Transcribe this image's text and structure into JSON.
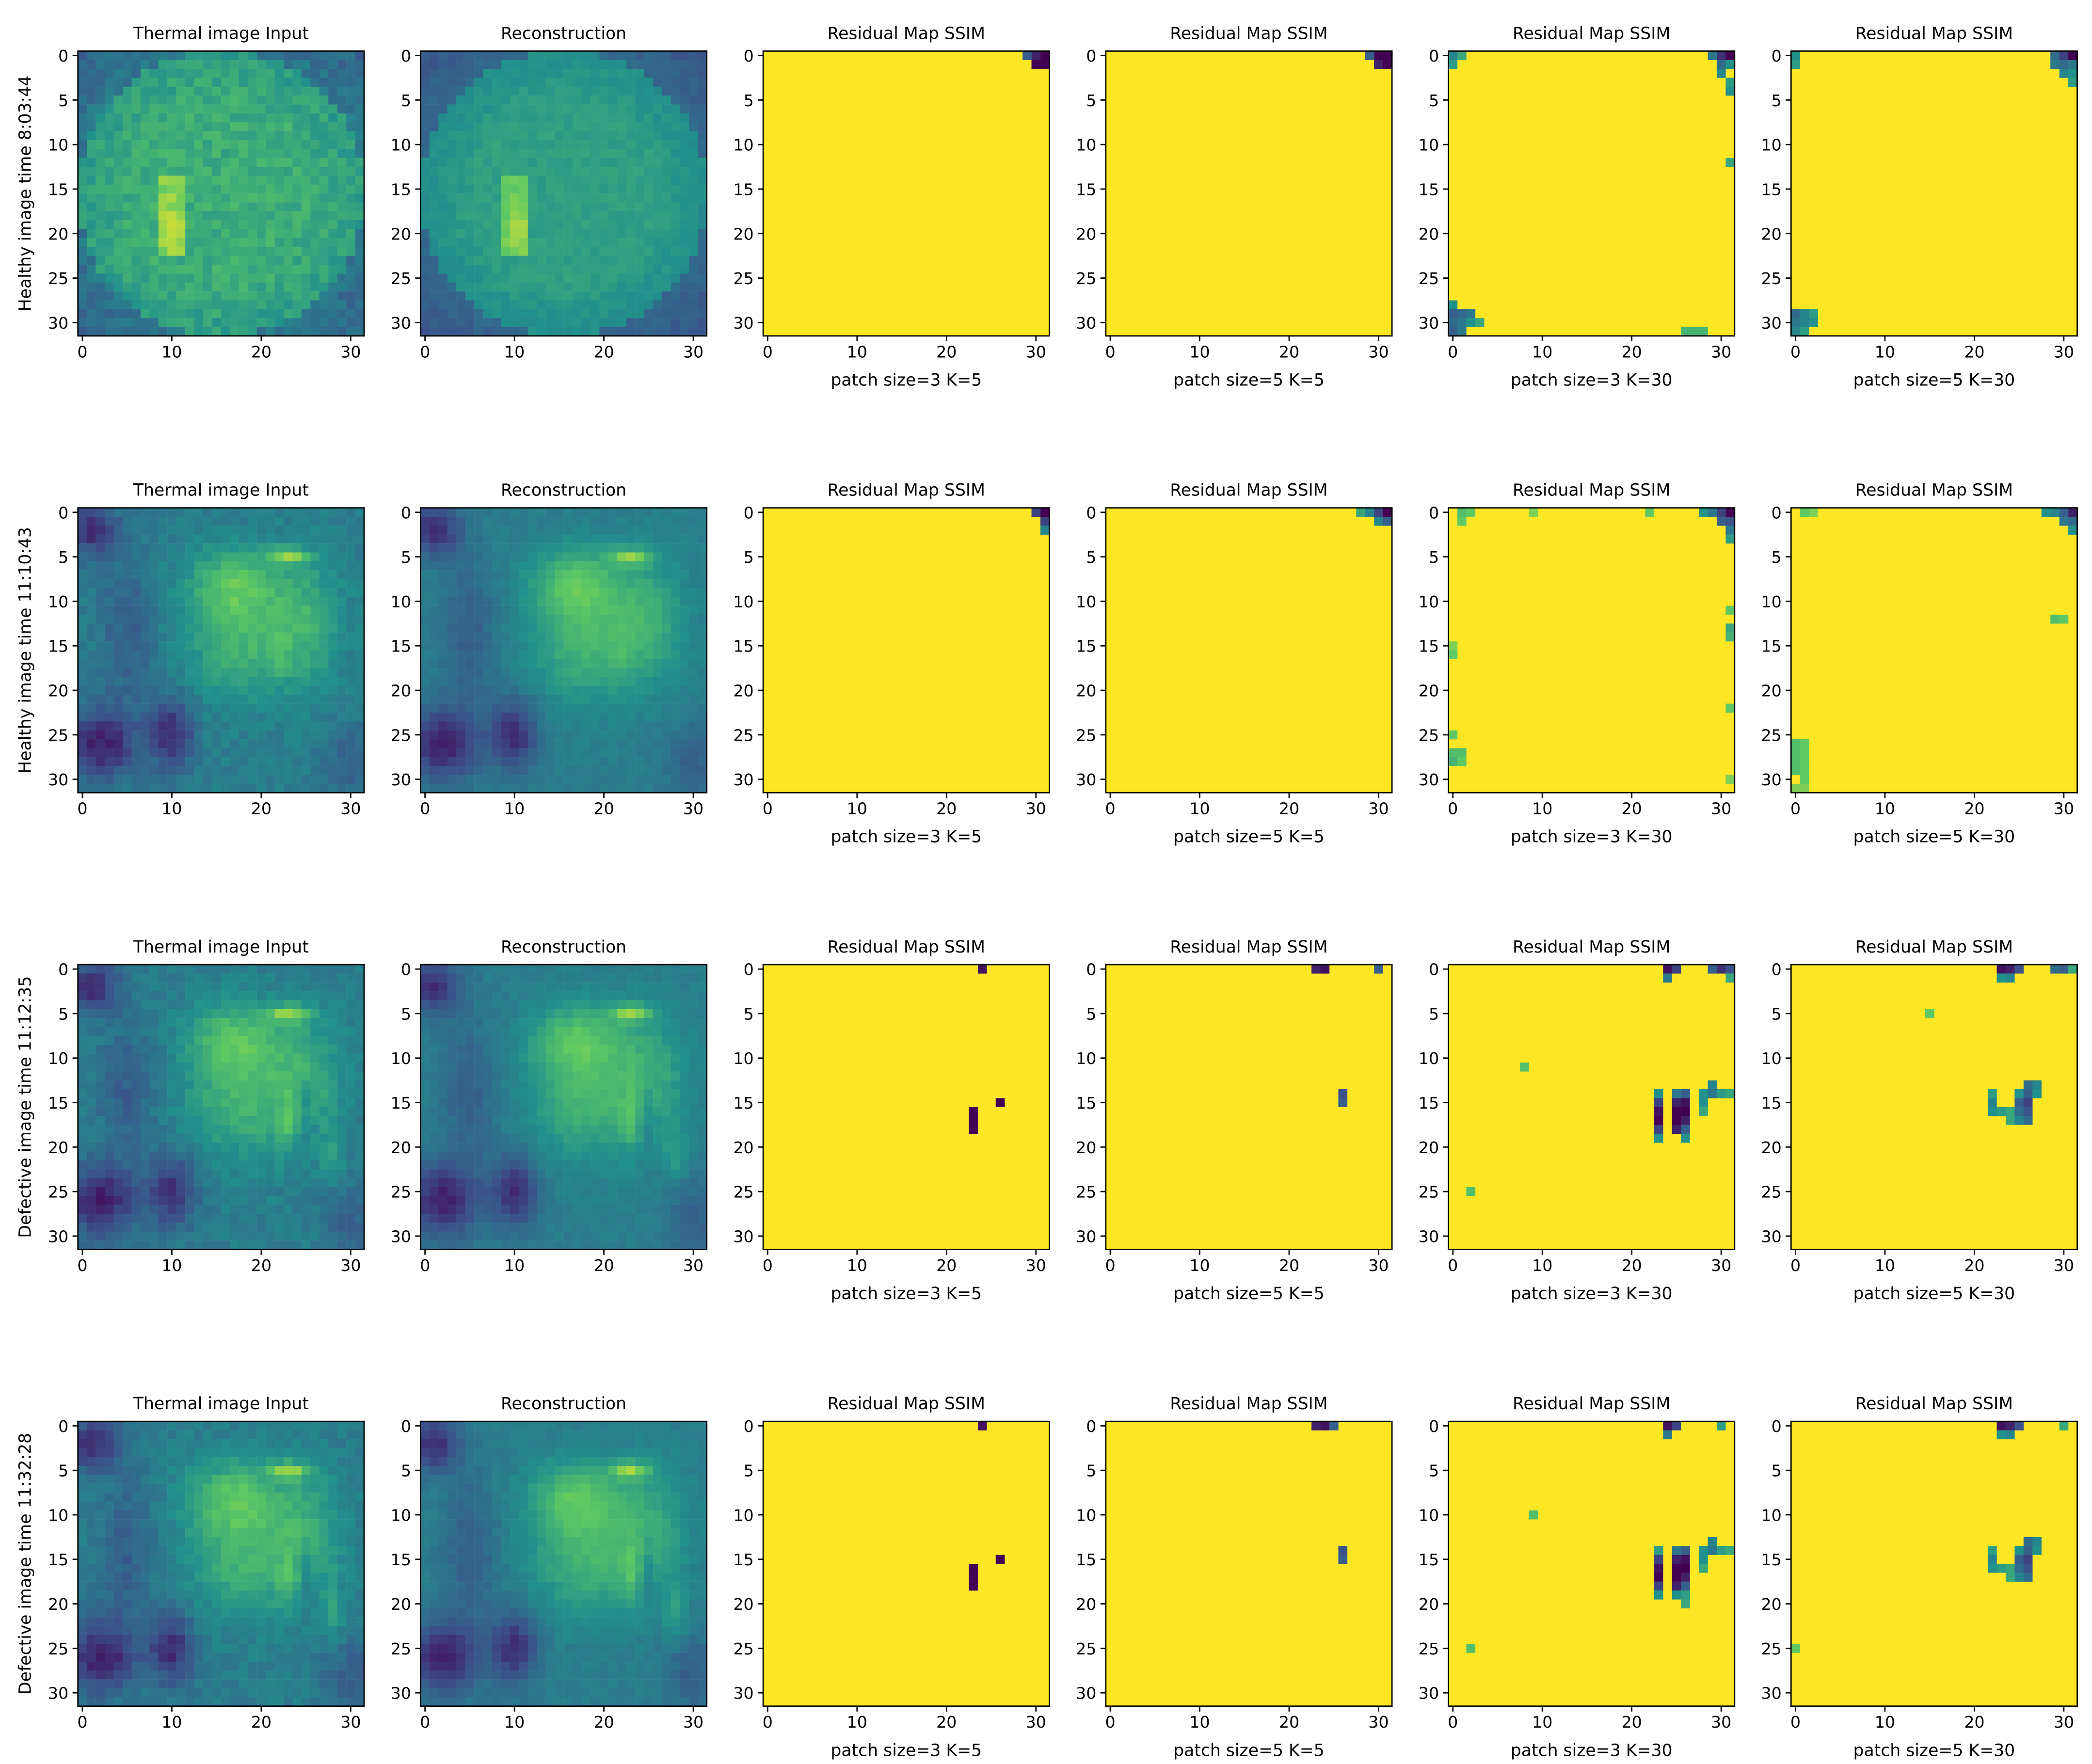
{
  "figure": {
    "colormap": "viridis",
    "colors": {
      "viridis_dark": "#440154",
      "viridis_mid": "#21918c",
      "viridis_green": "#5ec962",
      "viridis_yellow": "#fde725",
      "axis": "#000000",
      "background": "#ffffff"
    },
    "rows": [
      {
        "ylabel": "Healthy image time 8:03:44"
      },
      {
        "ylabel": "Healthy image time 11:10:43"
      },
      {
        "ylabel": "Defective image time 11:12:35"
      },
      {
        "ylabel": "Defective image time 11:32:28"
      }
    ],
    "columns": [
      {
        "title": "Thermal image Input",
        "xlabel": ""
      },
      {
        "title": "Reconstruction",
        "xlabel": ""
      },
      {
        "title": "Residual Map SSIM",
        "xlabel": "patch size=3 K=5"
      },
      {
        "title": "Residual Map SSIM",
        "xlabel": "patch size=5 K=5"
      },
      {
        "title": "Residual Map SSIM",
        "xlabel": "patch size=3 K=30"
      },
      {
        "title": "Residual Map SSIM",
        "xlabel": "patch size=5 K=30"
      }
    ]
  },
  "chart_data": {
    "type": "heatmap",
    "grid_size": [
      32,
      32
    ],
    "xlim": [
      -0.5,
      31.5
    ],
    "ylim": [
      31.5,
      -0.5
    ],
    "xticks": [
      0,
      10,
      20,
      30
    ],
    "yticks": [
      0,
      5,
      10,
      15,
      20,
      25,
      30
    ],
    "value_range": [
      0,
      1
    ],
    "grid": false,
    "residual_background": 1.0,
    "residual_panels": [
      [
        [
          [
            31,
            0,
            0.0
          ],
          [
            30,
            0,
            0.1
          ],
          [
            30,
            1,
            0.0
          ],
          [
            31,
            1,
            0.0
          ],
          [
            29,
            0,
            0.3
          ]
        ],
        [
          [
            31,
            0,
            0.0
          ],
          [
            30,
            0,
            0.0
          ],
          [
            30,
            1,
            0.1
          ],
          [
            31,
            1,
            0.0
          ],
          [
            29,
            0,
            0.3
          ]
        ],
        [
          [
            0,
            0,
            0.45
          ],
          [
            1,
            0,
            0.6
          ],
          [
            0,
            1,
            0.55
          ],
          [
            30,
            0,
            0.15
          ],
          [
            31,
            0,
            0.0
          ],
          [
            29,
            0,
            0.4
          ],
          [
            30,
            1,
            0.35
          ],
          [
            31,
            1,
            0.5
          ],
          [
            30,
            2,
            0.45
          ],
          [
            31,
            3,
            0.55
          ],
          [
            31,
            4,
            0.5
          ],
          [
            31,
            12,
            0.6
          ],
          [
            0,
            28,
            0.5
          ],
          [
            0,
            29,
            0.3
          ],
          [
            1,
            29,
            0.35
          ],
          [
            2,
            29,
            0.4
          ],
          [
            0,
            30,
            0.35
          ],
          [
            1,
            30,
            0.4
          ],
          [
            2,
            30,
            0.5
          ],
          [
            3,
            30,
            0.6
          ],
          [
            0,
            31,
            0.3
          ],
          [
            1,
            31,
            0.4
          ],
          [
            26,
            31,
            0.65
          ],
          [
            27,
            31,
            0.65
          ],
          [
            28,
            31,
            0.65
          ]
        ],
        [
          [
            0,
            0,
            0.5
          ],
          [
            0,
            1,
            0.55
          ],
          [
            29,
            0,
            0.35
          ],
          [
            30,
            0,
            0.2
          ],
          [
            31,
            0,
            0.0
          ],
          [
            29,
            1,
            0.4
          ],
          [
            30,
            1,
            0.35
          ],
          [
            31,
            1,
            0.4
          ],
          [
            30,
            2,
            0.45
          ],
          [
            31,
            2,
            0.5
          ],
          [
            31,
            3,
            0.55
          ],
          [
            0,
            29,
            0.35
          ],
          [
            1,
            29,
            0.45
          ],
          [
            2,
            29,
            0.55
          ],
          [
            0,
            30,
            0.4
          ],
          [
            1,
            30,
            0.45
          ],
          [
            2,
            30,
            0.5
          ],
          [
            0,
            31,
            0.45
          ],
          [
            1,
            31,
            0.55
          ]
        ]
      ],
      [
        [
          [
            31,
            0,
            0.0
          ],
          [
            30,
            0,
            0.2
          ],
          [
            31,
            1,
            0.2
          ],
          [
            31,
            2,
            0.45
          ]
        ],
        [
          [
            31,
            0,
            0.0
          ],
          [
            30,
            0,
            0.2
          ],
          [
            29,
            0,
            0.45
          ],
          [
            30,
            1,
            0.45
          ],
          [
            31,
            1,
            0.3
          ],
          [
            28,
            0,
            0.6
          ]
        ],
        [
          [
            1,
            0,
            0.7
          ],
          [
            2,
            0,
            0.75
          ],
          [
            1,
            1,
            0.75
          ],
          [
            9,
            0,
            0.8
          ],
          [
            22,
            0,
            0.75
          ],
          [
            31,
            0,
            0.0
          ],
          [
            30,
            0,
            0.2
          ],
          [
            29,
            0,
            0.4
          ],
          [
            28,
            0,
            0.5
          ],
          [
            30,
            1,
            0.3
          ],
          [
            31,
            1,
            0.25
          ],
          [
            31,
            2,
            0.4
          ],
          [
            31,
            3,
            0.55
          ],
          [
            31,
            11,
            0.75
          ],
          [
            31,
            13,
            0.6
          ],
          [
            31,
            14,
            0.65
          ],
          [
            0,
            15,
            0.8
          ],
          [
            0,
            16,
            0.75
          ],
          [
            31,
            22,
            0.75
          ],
          [
            0,
            25,
            0.75
          ],
          [
            0,
            27,
            0.7
          ],
          [
            1,
            27,
            0.7
          ],
          [
            0,
            28,
            0.65
          ],
          [
            1,
            28,
            0.75
          ],
          [
            31,
            30,
            0.8
          ]
        ],
        [
          [
            1,
            0,
            0.75
          ],
          [
            2,
            0,
            0.8
          ],
          [
            31,
            0,
            0.1
          ],
          [
            30,
            0,
            0.3
          ],
          [
            29,
            0,
            0.45
          ],
          [
            28,
            0,
            0.5
          ],
          [
            30,
            1,
            0.4
          ],
          [
            31,
            1,
            0.35
          ],
          [
            31,
            2,
            0.5
          ],
          [
            29,
            12,
            0.7
          ],
          [
            30,
            12,
            0.75
          ],
          [
            0,
            26,
            0.7
          ],
          [
            1,
            26,
            0.75
          ],
          [
            0,
            27,
            0.7
          ],
          [
            1,
            27,
            0.75
          ],
          [
            0,
            28,
            0.7
          ],
          [
            1,
            28,
            0.75
          ],
          [
            0,
            29,
            0.7
          ],
          [
            1,
            29,
            0.75
          ],
          [
            1,
            30,
            0.75
          ],
          [
            0,
            31,
            0.8
          ],
          [
            1,
            31,
            0.8
          ]
        ]
      ],
      [
        [
          [
            24,
            0,
            0.05
          ],
          [
            23,
            16,
            0.0
          ],
          [
            23,
            17,
            0.0
          ],
          [
            23,
            18,
            0.0
          ],
          [
            26,
            15,
            0.0
          ]
        ],
        [
          [
            23,
            0,
            0.1
          ],
          [
            24,
            0,
            0.05
          ],
          [
            30,
            0,
            0.3
          ],
          [
            26,
            14,
            0.25
          ],
          [
            26,
            15,
            0.3
          ]
        ],
        [
          [
            24,
            0,
            0.05
          ],
          [
            25,
            0,
            0.2
          ],
          [
            24,
            1,
            0.4
          ],
          [
            29,
            0,
            0.3
          ],
          [
            30,
            0,
            0.15
          ],
          [
            31,
            0,
            0.25
          ],
          [
            31,
            1,
            0.6
          ],
          [
            8,
            11,
            0.7
          ],
          [
            2,
            25,
            0.7
          ],
          [
            23,
            14,
            0.5
          ],
          [
            23,
            15,
            0.2
          ],
          [
            23,
            16,
            0.05
          ],
          [
            23,
            17,
            0.0
          ],
          [
            23,
            18,
            0.2
          ],
          [
            23,
            19,
            0.5
          ],
          [
            25,
            14,
            0.4
          ],
          [
            25,
            15,
            0.1
          ],
          [
            25,
            16,
            0.0
          ],
          [
            25,
            17,
            0.0
          ],
          [
            25,
            18,
            0.1
          ],
          [
            26,
            14,
            0.3
          ],
          [
            26,
            15,
            0.05
          ],
          [
            26,
            16,
            0.0
          ],
          [
            26,
            17,
            0.1
          ],
          [
            26,
            18,
            0.3
          ],
          [
            26,
            19,
            0.5
          ],
          [
            28,
            14,
            0.5
          ],
          [
            28,
            15,
            0.5
          ],
          [
            28,
            16,
            0.6
          ],
          [
            29,
            13,
            0.45
          ],
          [
            29,
            14,
            0.4
          ],
          [
            30,
            14,
            0.55
          ],
          [
            31,
            14,
            0.6
          ]
        ],
        [
          [
            23,
            0,
            0.05
          ],
          [
            24,
            0,
            0.1
          ],
          [
            25,
            0,
            0.25
          ],
          [
            23,
            1,
            0.5
          ],
          [
            24,
            1,
            0.45
          ],
          [
            29,
            0,
            0.35
          ],
          [
            30,
            0,
            0.3
          ],
          [
            31,
            0,
            0.6
          ],
          [
            15,
            5,
            0.75
          ],
          [
            22,
            14,
            0.55
          ],
          [
            22,
            15,
            0.45
          ],
          [
            22,
            16,
            0.5
          ],
          [
            23,
            16,
            0.55
          ],
          [
            24,
            16,
            0.6
          ],
          [
            24,
            17,
            0.6
          ],
          [
            25,
            14,
            0.5
          ],
          [
            25,
            15,
            0.3
          ],
          [
            25,
            16,
            0.35
          ],
          [
            25,
            17,
            0.45
          ],
          [
            26,
            13,
            0.35
          ],
          [
            26,
            14,
            0.3
          ],
          [
            26,
            15,
            0.2
          ],
          [
            26,
            16,
            0.25
          ],
          [
            26,
            17,
            0.35
          ],
          [
            27,
            13,
            0.45
          ],
          [
            27,
            14,
            0.5
          ]
        ]
      ],
      [
        [
          [
            24,
            0,
            0.05
          ],
          [
            23,
            16,
            0.0
          ],
          [
            23,
            17,
            0.0
          ],
          [
            23,
            18,
            0.0
          ],
          [
            26,
            15,
            0.0
          ]
        ],
        [
          [
            23,
            0,
            0.1
          ],
          [
            24,
            0,
            0.05
          ],
          [
            25,
            0,
            0.3
          ],
          [
            26,
            14,
            0.25
          ],
          [
            26,
            15,
            0.3
          ]
        ],
        [
          [
            24,
            0,
            0.05
          ],
          [
            25,
            0,
            0.2
          ],
          [
            24,
            1,
            0.4
          ],
          [
            30,
            0,
            0.55
          ],
          [
            9,
            10,
            0.7
          ],
          [
            2,
            25,
            0.7
          ],
          [
            23,
            14,
            0.55
          ],
          [
            23,
            15,
            0.2
          ],
          [
            23,
            16,
            0.05
          ],
          [
            23,
            17,
            0.0
          ],
          [
            23,
            18,
            0.2
          ],
          [
            23,
            19,
            0.5
          ],
          [
            25,
            14,
            0.4
          ],
          [
            25,
            15,
            0.1
          ],
          [
            25,
            16,
            0.0
          ],
          [
            25,
            17,
            0.0
          ],
          [
            25,
            18,
            0.1
          ],
          [
            25,
            19,
            0.5
          ],
          [
            26,
            14,
            0.3
          ],
          [
            26,
            15,
            0.05
          ],
          [
            26,
            16,
            0.0
          ],
          [
            26,
            17,
            0.1
          ],
          [
            26,
            18,
            0.3
          ],
          [
            26,
            19,
            0.55
          ],
          [
            26,
            20,
            0.6
          ],
          [
            28,
            14,
            0.5
          ],
          [
            28,
            15,
            0.5
          ],
          [
            28,
            16,
            0.6
          ],
          [
            29,
            13,
            0.45
          ],
          [
            29,
            14,
            0.4
          ],
          [
            30,
            14,
            0.55
          ],
          [
            31,
            14,
            0.6
          ]
        ],
        [
          [
            23,
            0,
            0.05
          ],
          [
            24,
            0,
            0.1
          ],
          [
            25,
            0,
            0.25
          ],
          [
            23,
            1,
            0.5
          ],
          [
            24,
            1,
            0.45
          ],
          [
            30,
            0,
            0.6
          ],
          [
            0,
            25,
            0.75
          ],
          [
            22,
            14,
            0.55
          ],
          [
            22,
            15,
            0.45
          ],
          [
            22,
            16,
            0.5
          ],
          [
            23,
            16,
            0.55
          ],
          [
            24,
            16,
            0.6
          ],
          [
            24,
            17,
            0.6
          ],
          [
            25,
            14,
            0.5
          ],
          [
            25,
            15,
            0.3
          ],
          [
            25,
            16,
            0.35
          ],
          [
            25,
            17,
            0.45
          ],
          [
            26,
            13,
            0.35
          ],
          [
            26,
            14,
            0.3
          ],
          [
            26,
            15,
            0.2
          ],
          [
            26,
            16,
            0.25
          ],
          [
            26,
            17,
            0.35
          ],
          [
            27,
            13,
            0.45
          ],
          [
            27,
            14,
            0.5
          ]
        ]
      ]
    ]
  }
}
